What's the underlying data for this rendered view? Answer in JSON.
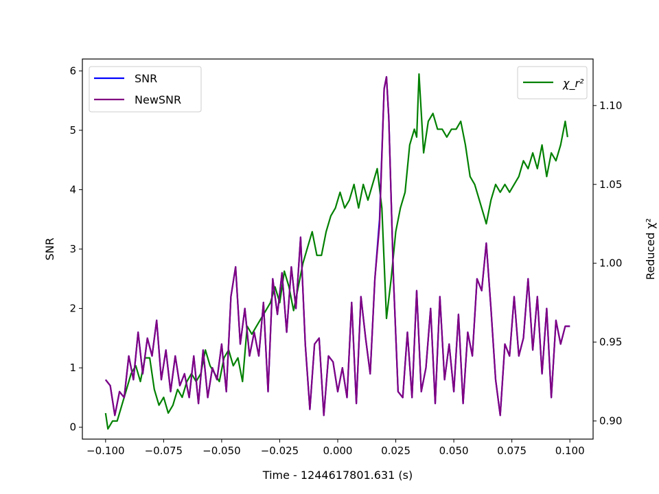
{
  "chart_data": {
    "type": "line",
    "xlabel": "Time - 1244617801.631 (s)",
    "ylabel_left": "SNR",
    "ylabel_right": "Reduced χ²",
    "xlim": [
      -0.11,
      0.11
    ],
    "ylim_left": [
      -0.2,
      6.2
    ],
    "ylim_right": [
      0.8885,
      1.1295
    ],
    "x_ticks": [
      -0.1,
      -0.075,
      -0.05,
      -0.025,
      0.0,
      0.025,
      0.05,
      0.075,
      0.1
    ],
    "x_tick_labels": [
      "−0.100",
      "−0.075",
      "−0.050",
      "−0.025",
      "0.000",
      "0.025",
      "0.050",
      "0.075",
      "0.100"
    ],
    "y_left_ticks": [
      0,
      1,
      2,
      3,
      4,
      5,
      6
    ],
    "y_left_tick_labels": [
      "0",
      "1",
      "2",
      "3",
      "4",
      "5",
      "6"
    ],
    "y_right_ticks": [
      0.9,
      0.95,
      1.0,
      1.05,
      1.1
    ],
    "y_right_tick_labels": [
      "0.90",
      "0.95",
      "1.00",
      "1.05",
      "1.10"
    ],
    "grid": false,
    "legend_left_placement": "upper left",
    "legend_right_placement": "upper right",
    "series": [
      {
        "name": "SNR",
        "axis": "left",
        "color": "#0000ff",
        "x": [
          -0.1,
          -0.098,
          -0.096,
          -0.094,
          -0.092,
          -0.09,
          -0.088,
          -0.086,
          -0.084,
          -0.082,
          -0.08,
          -0.078,
          -0.076,
          -0.074,
          -0.072,
          -0.07,
          -0.068,
          -0.066,
          -0.064,
          -0.062,
          -0.06,
          -0.058,
          -0.056,
          -0.054,
          -0.052,
          -0.05,
          -0.048,
          -0.046,
          -0.044,
          -0.042,
          -0.04,
          -0.038,
          -0.036,
          -0.034,
          -0.032,
          -0.03,
          -0.028,
          -0.026,
          -0.024,
          -0.022,
          -0.02,
          -0.018,
          -0.016,
          -0.014,
          -0.012,
          -0.01,
          -0.008,
          -0.006,
          -0.004,
          -0.002,
          0.0,
          0.002,
          0.004,
          0.006,
          0.008,
          0.01,
          0.012,
          0.014,
          0.016,
          0.018,
          0.02,
          0.021,
          0.022,
          0.024,
          0.026,
          0.028,
          0.03,
          0.032,
          0.034,
          0.036,
          0.038,
          0.04,
          0.042,
          0.044,
          0.046,
          0.048,
          0.05,
          0.052,
          0.054,
          0.056,
          0.058,
          0.06,
          0.062,
          0.064,
          0.066,
          0.068,
          0.07,
          0.072,
          0.074,
          0.076,
          0.078,
          0.08,
          0.082,
          0.084,
          0.086,
          0.088,
          0.09,
          0.092,
          0.094,
          0.096,
          0.098,
          0.1
        ],
        "values": [
          0.8,
          0.7,
          0.2,
          0.6,
          0.5,
          1.2,
          0.8,
          1.6,
          0.9,
          1.5,
          1.2,
          1.8,
          0.8,
          1.3,
          0.6,
          1.2,
          0.7,
          0.9,
          0.5,
          1.2,
          0.4,
          1.3,
          0.5,
          1.0,
          0.8,
          1.4,
          0.6,
          2.2,
          2.7,
          1.4,
          2.0,
          1.2,
          1.6,
          1.2,
          2.1,
          0.6,
          2.5,
          1.9,
          2.6,
          1.6,
          2.7,
          2.0,
          3.2,
          1.4,
          0.3,
          1.4,
          1.5,
          0.2,
          1.2,
          1.1,
          0.6,
          1.0,
          0.5,
          2.1,
          0.4,
          2.2,
          1.5,
          0.9,
          2.5,
          3.5,
          5.7,
          5.9,
          5.2,
          2.5,
          0.6,
          0.5,
          1.6,
          0.5,
          2.3,
          0.6,
          1.0,
          2.0,
          0.4,
          2.2,
          0.8,
          1.4,
          0.6,
          1.9,
          0.4,
          1.6,
          1.2,
          2.5,
          2.3,
          3.1,
          2.0,
          0.8,
          0.2,
          1.4,
          1.2,
          2.2,
          1.2,
          1.5,
          2.5,
          1.3,
          2.2,
          0.9,
          2.0,
          0.5,
          1.8,
          1.4,
          1.7,
          1.7
        ]
      },
      {
        "name": "NewSNR",
        "axis": "left",
        "color": "#800080",
        "x": [
          -0.1,
          -0.098,
          -0.096,
          -0.094,
          -0.092,
          -0.09,
          -0.088,
          -0.086,
          -0.084,
          -0.082,
          -0.08,
          -0.078,
          -0.076,
          -0.074,
          -0.072,
          -0.07,
          -0.068,
          -0.066,
          -0.064,
          -0.062,
          -0.06,
          -0.058,
          -0.056,
          -0.054,
          -0.052,
          -0.05,
          -0.048,
          -0.046,
          -0.044,
          -0.042,
          -0.04,
          -0.038,
          -0.036,
          -0.034,
          -0.032,
          -0.03,
          -0.028,
          -0.026,
          -0.024,
          -0.022,
          -0.02,
          -0.018,
          -0.016,
          -0.014,
          -0.012,
          -0.01,
          -0.008,
          -0.006,
          -0.004,
          -0.002,
          0.0,
          0.002,
          0.004,
          0.006,
          0.008,
          0.01,
          0.012,
          0.014,
          0.016,
          0.018,
          0.02,
          0.021,
          0.022,
          0.024,
          0.026,
          0.028,
          0.03,
          0.032,
          0.034,
          0.036,
          0.038,
          0.04,
          0.042,
          0.044,
          0.046,
          0.048,
          0.05,
          0.052,
          0.054,
          0.056,
          0.058,
          0.06,
          0.062,
          0.064,
          0.066,
          0.068,
          0.07,
          0.072,
          0.074,
          0.076,
          0.078,
          0.08,
          0.082,
          0.084,
          0.086,
          0.088,
          0.09,
          0.092,
          0.094,
          0.096,
          0.098,
          0.1
        ],
        "values": [
          0.8,
          0.7,
          0.2,
          0.6,
          0.5,
          1.2,
          0.8,
          1.6,
          0.9,
          1.5,
          1.2,
          1.8,
          0.8,
          1.3,
          0.6,
          1.2,
          0.7,
          0.9,
          0.5,
          1.2,
          0.4,
          1.3,
          0.5,
          1.0,
          0.8,
          1.4,
          0.6,
          2.2,
          2.7,
          1.4,
          2.0,
          1.2,
          1.6,
          1.2,
          2.1,
          0.6,
          2.5,
          1.9,
          2.6,
          1.6,
          2.7,
          2.0,
          3.2,
          1.4,
          0.3,
          1.4,
          1.5,
          0.2,
          1.2,
          1.1,
          0.6,
          1.0,
          0.5,
          2.1,
          0.4,
          2.2,
          1.5,
          0.9,
          2.5,
          3.4,
          5.7,
          5.9,
          5.2,
          2.5,
          0.6,
          0.5,
          1.6,
          0.5,
          2.3,
          0.6,
          1.0,
          2.0,
          0.4,
          2.2,
          0.8,
          1.4,
          0.6,
          1.9,
          0.4,
          1.6,
          1.2,
          2.5,
          2.3,
          3.1,
          2.0,
          0.8,
          0.2,
          1.4,
          1.2,
          2.2,
          1.2,
          1.5,
          2.5,
          1.3,
          2.2,
          0.9,
          2.0,
          0.5,
          1.8,
          1.4,
          1.7,
          1.7
        ]
      },
      {
        "name": "χ_r²",
        "axis": "right",
        "color": "#008000",
        "x": [
          -0.1,
          -0.099,
          -0.097,
          -0.095,
          -0.093,
          -0.091,
          -0.089,
          -0.087,
          -0.085,
          -0.083,
          -0.081,
          -0.079,
          -0.077,
          -0.075,
          -0.073,
          -0.071,
          -0.069,
          -0.067,
          -0.065,
          -0.063,
          -0.061,
          -0.059,
          -0.057,
          -0.055,
          -0.053,
          -0.051,
          -0.049,
          -0.047,
          -0.045,
          -0.043,
          -0.041,
          -0.039,
          -0.037,
          -0.035,
          -0.033,
          -0.031,
          -0.029,
          -0.027,
          -0.025,
          -0.023,
          -0.021,
          -0.019,
          -0.017,
          -0.015,
          -0.013,
          -0.011,
          -0.009,
          -0.007,
          -0.005,
          -0.003,
          -0.001,
          0.001,
          0.003,
          0.005,
          0.007,
          0.009,
          0.011,
          0.013,
          0.015,
          0.017,
          0.019,
          0.021,
          0.023,
          0.025,
          0.027,
          0.029,
          0.031,
          0.033,
          0.034,
          0.035,
          0.037,
          0.039,
          0.041,
          0.043,
          0.045,
          0.047,
          0.049,
          0.051,
          0.053,
          0.055,
          0.057,
          0.059,
          0.061,
          0.063,
          0.064,
          0.066,
          0.068,
          0.07,
          0.072,
          0.074,
          0.076,
          0.078,
          0.08,
          0.082,
          0.084,
          0.086,
          0.088,
          0.09,
          0.092,
          0.094,
          0.096,
          0.098,
          0.099
        ],
        "values": [
          0.905,
          0.895,
          0.9,
          0.9,
          0.91,
          0.92,
          0.93,
          0.935,
          0.925,
          0.94,
          0.94,
          0.92,
          0.91,
          0.915,
          0.905,
          0.91,
          0.92,
          0.915,
          0.925,
          0.93,
          0.925,
          0.93,
          0.945,
          0.935,
          0.93,
          0.925,
          0.94,
          0.945,
          0.935,
          0.94,
          0.925,
          0.96,
          0.955,
          0.96,
          0.965,
          0.97,
          0.975,
          0.985,
          0.975,
          0.995,
          0.985,
          0.97,
          0.985,
          1.0,
          1.01,
          1.02,
          1.005,
          1.005,
          1.02,
          1.03,
          1.035,
          1.045,
          1.035,
          1.04,
          1.05,
          1.035,
          1.05,
          1.04,
          1.05,
          1.06,
          1.035,
          0.965,
          0.99,
          1.02,
          1.035,
          1.045,
          1.075,
          1.085,
          1.08,
          1.12,
          1.07,
          1.09,
          1.095,
          1.085,
          1.085,
          1.08,
          1.085,
          1.085,
          1.09,
          1.075,
          1.055,
          1.05,
          1.04,
          1.03,
          1.025,
          1.04,
          1.05,
          1.045,
          1.05,
          1.045,
          1.05,
          1.055,
          1.065,
          1.06,
          1.07,
          1.06,
          1.075,
          1.055,
          1.07,
          1.065,
          1.075,
          1.09,
          1.08
        ]
      }
    ]
  }
}
